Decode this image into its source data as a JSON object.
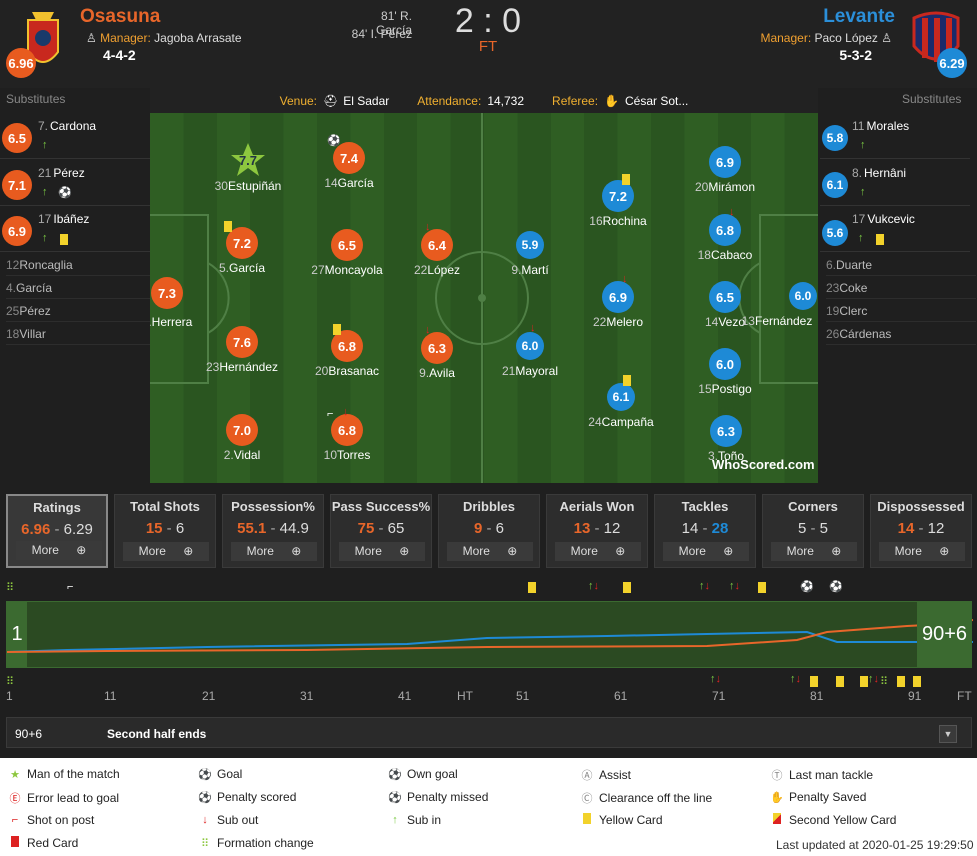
{
  "home": {
    "name": "Osasuna",
    "manager_label": "Manager:",
    "manager": "Jagoba Arrasate",
    "formation": "4-4-2",
    "rating": "6.96",
    "color": "#e85b1f"
  },
  "away": {
    "name": "Levante",
    "manager_label": "Manager:",
    "manager": "Paco López",
    "formation": "5-3-2",
    "rating": "6.29",
    "color": "#1e8ad6"
  },
  "score": "2 : 0",
  "status": "FT",
  "scorers": [
    "81' R. García",
    "84' I. Pérez"
  ],
  "subs_label": "Substitutes",
  "home_subs": [
    {
      "num": "7.",
      "name": "Cardona",
      "rating": "6.5"
    },
    {
      "num": "21",
      "name": "Pérez",
      "rating": "7.1"
    },
    {
      "num": "17",
      "name": "Ibáñez",
      "rating": "6.9"
    }
  ],
  "home_unused": [
    {
      "num": "12",
      "name": "Roncaglia"
    },
    {
      "num": "4.",
      "name": "García"
    },
    {
      "num": "25",
      "name": "Pérez"
    },
    {
      "num": "18",
      "name": "Villar"
    }
  ],
  "away_subs": [
    {
      "num": "11",
      "name": "Morales",
      "rating": "5.8"
    },
    {
      "num": "8.",
      "name": "Hernâni",
      "rating": "6.1"
    },
    {
      "num": "17",
      "name": "Vukcevic",
      "rating": "5.6"
    }
  ],
  "away_unused": [
    {
      "num": "6.",
      "name": "Duarte"
    },
    {
      "num": "23",
      "name": "Coke"
    },
    {
      "num": "19",
      "name": "Clerc"
    },
    {
      "num": "26",
      "name": "Cárdenas"
    }
  ],
  "venue": {
    "venue_label": "Venue:",
    "venue": "El Sadar",
    "att_label": "Attendance:",
    "attendance": "14,732",
    "ref_label": "Referee:",
    "referee": "César Sot..."
  },
  "home_players": [
    {
      "num": "30",
      "name": "Estupiñán",
      "rating": "7.7",
      "motm": true
    },
    {
      "num": "14",
      "name": "García",
      "rating": "7.4"
    },
    {
      "num": "5.",
      "name": "García",
      "rating": "7.2"
    },
    {
      "num": "27",
      "name": "Moncayola",
      "rating": "6.5"
    },
    {
      "num": "22",
      "name": "López",
      "rating": "6.4"
    },
    {
      "num": "1.",
      "name": "Herrera",
      "rating": "7.3"
    },
    {
      "num": "23",
      "name": "Hernández",
      "rating": "7.6"
    },
    {
      "num": "20",
      "name": "Brasanac",
      "rating": "6.8"
    },
    {
      "num": "9.",
      "name": "Avila",
      "rating": "6.3"
    },
    {
      "num": "2.",
      "name": "Vidal",
      "rating": "7.0"
    },
    {
      "num": "10",
      "name": "Torres",
      "rating": "6.8"
    }
  ],
  "away_players": [
    {
      "num": "20",
      "name": "Mirámon",
      "rating": "6.9"
    },
    {
      "num": "16",
      "name": "Rochina",
      "rating": "7.2"
    },
    {
      "num": "18",
      "name": "Cabaco",
      "rating": "6.8"
    },
    {
      "num": "9.",
      "name": "Martí",
      "rating": "5.9"
    },
    {
      "num": "22",
      "name": "Melero",
      "rating": "6.9"
    },
    {
      "num": "14",
      "name": "Vezo",
      "rating": "6.5"
    },
    {
      "num": "13",
      "name": "Fernández",
      "rating": "6.0"
    },
    {
      "num": "21",
      "name": "Mayoral",
      "rating": "6.0"
    },
    {
      "num": "15",
      "name": "Postigo",
      "rating": "6.0"
    },
    {
      "num": "24",
      "name": "Campaña",
      "rating": "6.1"
    },
    {
      "num": "3.",
      "name": "Toño",
      "rating": "6.3"
    }
  ],
  "brand": "WhoScored.com",
  "stats": [
    {
      "title": "Ratings",
      "home": "6.96",
      "away": "6.29",
      "more": "More"
    },
    {
      "title": "Total Shots",
      "home": "15",
      "away": "6",
      "more": "More"
    },
    {
      "title": "Possession%",
      "home": "55.1",
      "away": "44.9",
      "more": "More"
    },
    {
      "title": "Pass Success%",
      "home": "75",
      "away": "65",
      "more": "More"
    },
    {
      "title": "Dribbles",
      "home": "9",
      "away": "6",
      "more": "More"
    },
    {
      "title": "Aerials Won",
      "home": "13",
      "away": "12",
      "more": "More"
    },
    {
      "title": "Tackles",
      "home": "14",
      "away": "28",
      "more": "More"
    },
    {
      "title": "Corners",
      "home": "5",
      "away": "5",
      "more": "More"
    },
    {
      "title": "Dispossessed",
      "home": "14",
      "away": "12",
      "more": "More"
    }
  ],
  "timeline": {
    "start": "1",
    "end": "90+6"
  },
  "ticks": [
    "1",
    "11",
    "21",
    "31",
    "41",
    "HT",
    "51",
    "61",
    "71",
    "81",
    "91",
    "FT"
  ],
  "commentary": {
    "minute": "90+6",
    "text": "Second half ends"
  },
  "legend": [
    "Man of the match",
    "Goal",
    "Own goal",
    "Assist",
    "Last man tackle",
    "Error lead to goal",
    "Penalty scored",
    "Penalty missed",
    "Clearance off the line",
    "Penalty Saved",
    "Shot on post",
    "Sub out",
    "Sub in",
    "Yellow Card",
    "Second Yellow Card",
    "Red Card",
    "Formation change"
  ],
  "last_updated": "Last updated at 2020-01-25 19:29:50"
}
